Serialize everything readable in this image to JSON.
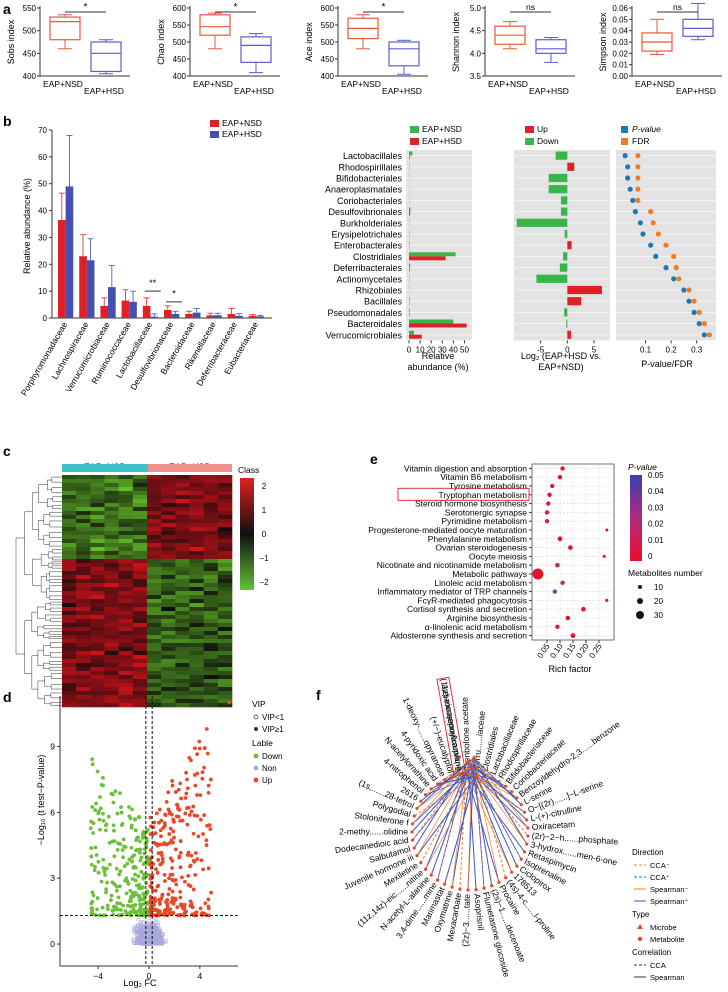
{
  "panel_letters": [
    "a",
    "b",
    "c",
    "d",
    "e",
    "f"
  ],
  "panel_a": {
    "groups": [
      "EAP+NSD",
      "EAP+HSD"
    ],
    "colors": {
      "nsd": "#e8583a",
      "hsd": "#5a5ed0"
    },
    "boxplots": [
      {
        "ylabel": "Sobs index",
        "ticks": [
          "400",
          "450",
          "500",
          "550"
        ],
        "sig": "*",
        "nsd": {
          "min": 460,
          "q1": 480,
          "med": 520,
          "q3": 530,
          "max": 535
        },
        "hsd": {
          "min": 405,
          "q1": 410,
          "med": 450,
          "q3": 475,
          "max": 480
        }
      },
      {
        "ylabel": "Chao index",
        "ticks": [
          "400",
          "450",
          "500",
          "550",
          "600"
        ],
        "sig": "*",
        "nsd": {
          "min": 480,
          "q1": 520,
          "med": 545,
          "q3": 580,
          "max": 585
        },
        "hsd": {
          "min": 410,
          "q1": 440,
          "med": 490,
          "q3": 515,
          "max": 525
        }
      },
      {
        "ylabel": "Ace index",
        "ticks": [
          "400",
          "450",
          "500",
          "550",
          "600"
        ],
        "sig": "*",
        "nsd": {
          "min": 480,
          "q1": 510,
          "med": 540,
          "q3": 570,
          "max": 580
        },
        "hsd": {
          "min": 405,
          "q1": 430,
          "med": 480,
          "q3": 500,
          "max": 505
        }
      },
      {
        "ylabel": "Shannon index",
        "ticks": [
          "3.5",
          "4.0",
          "4.5",
          "5.0"
        ],
        "sig": "ns",
        "nsd": {
          "min": 4.1,
          "q1": 4.2,
          "med": 4.4,
          "q3": 4.6,
          "max": 4.7
        },
        "hsd": {
          "min": 3.8,
          "q1": 4.0,
          "med": 4.1,
          "q3": 4.3,
          "max": 4.35
        }
      },
      {
        "ylabel": "Simpson index",
        "ticks": [
          "0.00",
          "0.01",
          "0.02",
          "0.03",
          "0.04",
          "0.05",
          "0.06"
        ],
        "sig": "ns",
        "nsd": {
          "min": 0.019,
          "q1": 0.022,
          "med": 0.03,
          "q3": 0.038,
          "max": 0.05
        },
        "hsd": {
          "min": 0.032,
          "q1": 0.035,
          "med": 0.042,
          "q3": 0.05,
          "max": 0.064
        }
      }
    ]
  },
  "panel_b_left": {
    "legend": [
      "EAP+NSD",
      "EAP+HSD"
    ],
    "colors": {
      "nsd": "#e02027",
      "hsd": "#4450b0"
    },
    "ylabel": "Relative abundance (%)",
    "ticks": [
      "0",
      "10",
      "20",
      "30",
      "40",
      "50",
      "60",
      "70"
    ]
  },
  "panel_b_right": {
    "orders": [
      "Lactobacillales",
      "Rhodospirillales",
      "Bifidobacteriales",
      "Anaeroplasmatales",
      "Coriobacteriales",
      "Desulfovibrionales",
      "Burkholderiales",
      "Erysipelotrichales",
      "Enterobacterales",
      "Clostridiales",
      "Deferribacterales",
      "Actinomycetales",
      "Rhizobiales",
      "Bacillales",
      "Pseudomonadales",
      "Bacteroidales",
      "Verrucomicrobiales"
    ],
    "abundance_legend": [
      "EAP+NSD",
      "EAP+HSD"
    ],
    "abundance_colors": {
      "nsd": "#3ab54a",
      "hsd": "#e02027"
    },
    "abundance_ticks": [
      "0",
      "10",
      "20",
      "30",
      "40",
      "50"
    ],
    "abundance_xlabel_1": "Relative",
    "abundance_xlabel_2": "abundance (%)",
    "log2_legend": [
      "Up",
      "Down"
    ],
    "log2_ticks": [
      "-5",
      "0",
      "5"
    ],
    "log2_xlabel_1": "Log₂ (EAP+HSD vs.",
    "log2_xlabel_2": "EAP+NSD)",
    "p_legend": [
      "P-value",
      "FDR"
    ],
    "p_colors": {
      "p": "#1f78b4",
      "fdr": "#ef7d24"
    },
    "p_ticks": [
      "0.1",
      "0.2",
      "0.3"
    ],
    "p_xlabel": "P-value/FDR"
  },
  "panel_c": {
    "header": [
      "EAP+NSD",
      "EAP+HSD"
    ],
    "header_colors": {
      "nsd": "#40c0c8",
      "hsd": "#f0908a"
    },
    "legend_title": "Class",
    "legend_ticks": [
      "2",
      "1",
      "0",
      "−1",
      "−2"
    ]
  },
  "panel_d": {
    "ylabel": "−Log₁₀ (t test−P-value)",
    "xlabel": "Log₂ FC",
    "xticks": [
      "−4",
      "0",
      "4"
    ],
    "yticks": [
      "0",
      "3",
      "6",
      "9"
    ],
    "vip_title": "VIP",
    "vip_items": [
      "VIP<1",
      "VIP≥1"
    ],
    "label_title": "Lable",
    "label_items": [
      "Down",
      "Non",
      "Up"
    ],
    "colors": {
      "down": "#6dbf3a",
      "non": "#a8a8dc",
      "up": "#e8482a"
    }
  },
  "panel_e": {
    "pathways": [
      "Vitamin digestion and absorption",
      "Vitamin B6 metabolism",
      "Tyrosine metabolism",
      "Tryptophan metabolism",
      "Steroid hormone biosynthesis",
      "Serotonergic synapse",
      "Pyrimidine metabolism",
      "Progesterone-mediated oocyte maturation",
      "Phenylalanine metabolism",
      "Ovarian steroidogenesis",
      "Oocyte meiosis",
      "Nicotinate and nicotinamide metabolism",
      "Metabolic pathways",
      "Linoleic acid metabolism",
      "Inflammatory mediator of TRP channels",
      "FcγR-mediated phagocytosis",
      "Cortisol synthesis and secretion",
      "Arginine biosynthesis",
      "α-linolenic acid metabolism",
      "Aldosterone synthesis and secretion"
    ],
    "highlight": "Tryptophan metabolism",
    "rich_factor": [
      0.11,
      0.1,
      0.07,
      0.06,
      0.055,
      0.05,
      0.05,
      0.28,
      0.1,
      0.14,
      0.27,
      0.09,
      0.015,
      0.11,
      0.08,
      0.28,
      0.19,
      0.13,
      0.09,
      0.15
    ],
    "xticks": [
      "0.05",
      "0.10",
      "0.15",
      "0.20",
      "0.25"
    ],
    "xlabel": "Rich factor",
    "pvalue_title": "P-value",
    "pvalue_ticks": [
      "0.05",
      "0.04",
      "0.03",
      "0.02",
      "0.01",
      "0"
    ],
    "number_title": "Metabolites number",
    "number_items": [
      "10",
      "20",
      "30"
    ]
  },
  "panel_f": {
    "labels": [
      "5-hydroxyindoleacetate",
      "Trenbolone acetate",
      "Verru......iaceae",
      "Clostridiales",
      "Lactobacillaceae",
      "Rhodospirillaceae",
      "Bifidobacteriaceae",
      "Coriobacteriaceae",
      "Benzoyldehydro-2,3......benzone",
      "L-serine",
      "O−[(2r)......]−L-serine",
      "L-(+)-citrulline",
      "Oxiracetam",
      "(2r)−2−h......phosphate",
      "3-hydrox......men-6-one",
      "Retaspimycin",
      "Isoprenaline",
      "Ciclopirox",
      "178513",
      "(4s)-4-c......l-proline",
      "Procaine",
      "(2s)−1......decenoate",
      "Flumetasone glucoside",
      "Asoprisnil",
      "(2z)−3......tate",
      "Mexacarbate",
      "Oxymatrine",
      "Marimastat",
      "3,4-dime......mine",
      "N-acetyl-L-alanine",
      "(11z,14z)-eic......nitine",
      "Mexiletine",
      "Juvenile hormone iii",
      "Salbutamol",
      "Dodecanedioic acid",
      "2-methy......olidine",
      "Stoloniferone f",
      "Polygodial",
      "(1s,......28-tetrol",
      "2616",
      "4-nitrophenol",
      "N-acetylornithine",
      "4-pyridoxic acid",
      "1-deoxy-......opyranose",
      "(+/−)-eucalyptol",
      "(11z)-eicosenoylcarnitine"
    ],
    "highlight": "5-hydroxyindoleacetate",
    "direction_title": "Direction",
    "direction_items": [
      "CCA⁻",
      "CCA⁺",
      "Spearman⁻",
      "Spearman⁺"
    ],
    "type_title": "Type",
    "type_items": [
      "Microbe",
      "Metabolite"
    ],
    "corr_title": "Correlation",
    "corr_items": [
      "CCA",
      "Spearman"
    ],
    "colors": {
      "neg": "#ef7d24",
      "pos": "#3f56c0",
      "microbe": "#e8482a",
      "metabolite": "#e8482a"
    }
  }
}
